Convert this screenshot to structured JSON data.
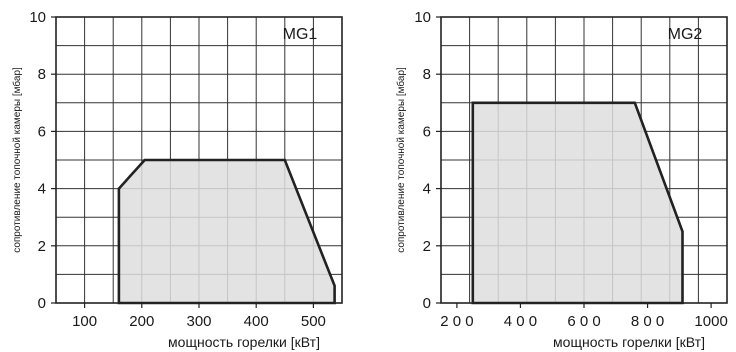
{
  "chart_data": [
    {
      "type": "area",
      "title": "MG1",
      "xlabel": "мощность горелки [кВт]",
      "ylabel": "сопротивление топочной камеры [мбар]",
      "xlim": [
        50,
        550
      ],
      "ylim": [
        0,
        10
      ],
      "x_ticks": [
        100,
        200,
        300,
        400,
        500
      ],
      "x_tick_labels": [
        "100",
        "200",
        "300",
        "400",
        "500"
      ],
      "y_ticks": [
        0,
        2,
        4,
        6,
        8,
        10
      ],
      "y_tick_labels": [
        "0",
        "2",
        "4",
        "6",
        "8",
        "10"
      ],
      "grid": true,
      "fill_color": "#dedede",
      "series": [
        {
          "x": [
            160,
            160,
            205,
            450,
            537,
            537,
            160
          ],
          "y": [
            0,
            4,
            5,
            5,
            0.6,
            0,
            0
          ]
        }
      ]
    },
    {
      "type": "area",
      "title": "MG2",
      "xlabel": "мощность горелки [кВт]",
      "ylabel": "сопротивление топочной камеры [мбар]",
      "xlim": [
        150,
        1050
      ],
      "ylim": [
        0,
        10
      ],
      "x_ticks": [
        200,
        400,
        600,
        800,
        1000
      ],
      "x_tick_labels": [
        "2 0 0",
        "4 0 0",
        "6 0 0",
        "8 0 0",
        "1000"
      ],
      "y_ticks": [
        0,
        2,
        4,
        6,
        8,
        10
      ],
      "y_tick_labels": [
        "0",
        "2",
        "4",
        "6",
        "8",
        "10"
      ],
      "grid": true,
      "fill_color": "#dedede",
      "series": [
        {
          "x": [
            250,
            250,
            760,
            910,
            910,
            250
          ],
          "y": [
            0,
            7,
            7,
            2.5,
            0,
            0
          ]
        }
      ]
    }
  ]
}
